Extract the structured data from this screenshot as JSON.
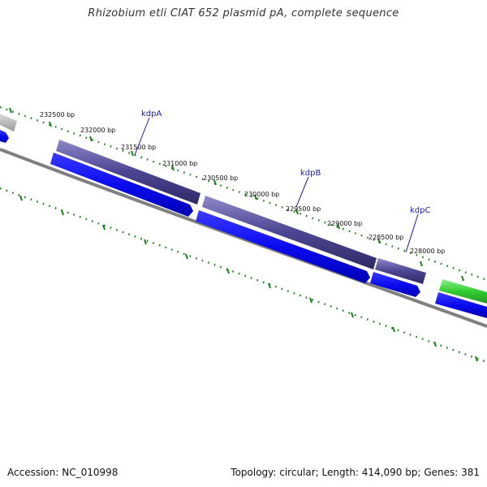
{
  "title": "Rhizobium etli CIAT 652 plasmid pA, complete sequence",
  "footer": {
    "accession": "Accession: NC_010998",
    "summary": "Topology: circular; Length: 414,090 bp; Genes: 381"
  },
  "ticks": [
    {
      "label": "232500 bp",
      "pos_bp": 232500
    },
    {
      "label": "232000 bp",
      "pos_bp": 232000
    },
    {
      "label": "231500 bp",
      "pos_bp": 231500
    },
    {
      "label": "231000 bp",
      "pos_bp": 231000
    },
    {
      "label": "230500 bp",
      "pos_bp": 230500
    },
    {
      "label": "230000 bp",
      "pos_bp": 230000
    },
    {
      "label": "229500 bp",
      "pos_bp": 229500
    },
    {
      "label": "229000 bp",
      "pos_bp": 229000
    },
    {
      "label": "228500 bp",
      "pos_bp": 228500
    },
    {
      "label": "228000 bp",
      "pos_bp": 228000
    }
  ],
  "gene_labels": [
    {
      "name": "kdpA"
    },
    {
      "name": "kdpB"
    },
    {
      "name": "kdpC"
    }
  ],
  "colors": {
    "backbone": "#808080",
    "cds": "#0b0bf0",
    "kdp_feature": "#4c4592",
    "green_feature": "#33cc33",
    "gray_feature": "#b5b5b5",
    "tick": "#1f7f1f",
    "gene_label": "#1a1aa8"
  }
}
